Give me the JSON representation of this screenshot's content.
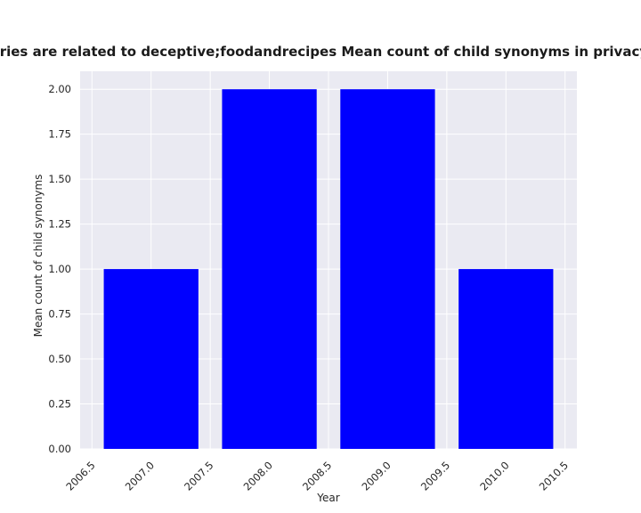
{
  "chart_data": {
    "type": "bar",
    "title": "Categories are related to deceptive;foodandrecipes Mean count of child synonyms in privacy policies",
    "xlabel": "Year",
    "ylabel": "Mean count of child synonyms",
    "x": [
      2007,
      2008,
      2009,
      2010
    ],
    "values": [
      1.0,
      2.0,
      2.0,
      1.0
    ],
    "bar_color": "#0000ff",
    "xlim": [
      2006.4,
      2010.6
    ],
    "ylim": [
      0,
      2.1
    ],
    "xticks": [
      2006.5,
      2007.0,
      2007.5,
      2008.0,
      2008.5,
      2009.0,
      2009.5,
      2010.0,
      2010.5
    ],
    "xtick_labels": [
      "2006.5",
      "2007.0",
      "2007.5",
      "2008.0",
      "2008.5",
      "2009.0",
      "2009.5",
      "2010.0",
      "2010.5"
    ],
    "yticks": [
      0,
      0.25,
      0.5,
      0.75,
      1.0,
      1.25,
      1.5,
      1.75,
      2.0
    ],
    "ytick_labels": [
      "0.00",
      "0.25",
      "0.50",
      "0.75",
      "1.00",
      "1.25",
      "1.50",
      "1.75",
      "2.00"
    ],
    "grid": true,
    "background": "#eaeaf2",
    "grid_color": "#ffffff"
  }
}
